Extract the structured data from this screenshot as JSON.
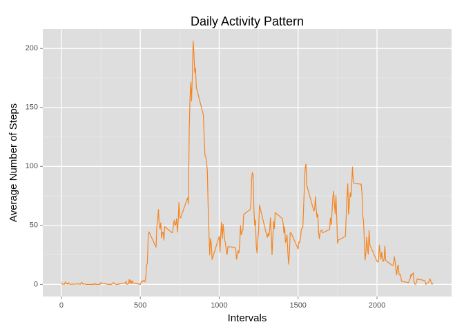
{
  "chart_data": {
    "type": "line",
    "title": "Daily Activity Pattern",
    "x_label": "Intervals",
    "y_label": "Average Number of Steps",
    "x": [
      0,
      5,
      10,
      15,
      20,
      25,
      30,
      35,
      40,
      45,
      50,
      55,
      100,
      105,
      110,
      115,
      120,
      125,
      130,
      135,
      140,
      145,
      150,
      155,
      200,
      205,
      210,
      215,
      220,
      225,
      230,
      235,
      240,
      245,
      250,
      255,
      300,
      305,
      310,
      315,
      320,
      325,
      330,
      335,
      340,
      345,
      350,
      355,
      400,
      405,
      410,
      415,
      420,
      425,
      430,
      435,
      440,
      445,
      450,
      455,
      500,
      505,
      510,
      515,
      520,
      525,
      530,
      535,
      540,
      545,
      550,
      555,
      600,
      605,
      610,
      615,
      620,
      625,
      630,
      635,
      640,
      645,
      650,
      655,
      700,
      705,
      710,
      715,
      720,
      725,
      730,
      735,
      740,
      745,
      750,
      755,
      800,
      805,
      810,
      815,
      820,
      825,
      830,
      835,
      840,
      845,
      850,
      855,
      900,
      905,
      910,
      915,
      920,
      925,
      930,
      935,
      940,
      945,
      950,
      955,
      1000,
      1005,
      1010,
      1015,
      1020,
      1025,
      1030,
      1035,
      1040,
      1045,
      1050,
      1055,
      1100,
      1105,
      1110,
      1115,
      1120,
      1125,
      1130,
      1135,
      1140,
      1145,
      1150,
      1155,
      1200,
      1205,
      1210,
      1215,
      1220,
      1225,
      1230,
      1235,
      1240,
      1245,
      1250,
      1255,
      1300,
      1305,
      1310,
      1315,
      1320,
      1325,
      1330,
      1335,
      1340,
      1345,
      1350,
      1355,
      1400,
      1405,
      1410,
      1415,
      1420,
      1425,
      1430,
      1435,
      1440,
      1445,
      1450,
      1455,
      1500,
      1505,
      1510,
      1515,
      1520,
      1525,
      1530,
      1535,
      1540,
      1545,
      1550,
      1555,
      1600,
      1605,
      1610,
      1615,
      1620,
      1625,
      1630,
      1635,
      1640,
      1645,
      1650,
      1655,
      1700,
      1705,
      1710,
      1715,
      1720,
      1725,
      1730,
      1735,
      1740,
      1745,
      1750,
      1755,
      1800,
      1805,
      1810,
      1815,
      1820,
      1825,
      1830,
      1835,
      1840,
      1845,
      1850,
      1855,
      1900,
      1905,
      1910,
      1915,
      1920,
      1925,
      1930,
      1935,
      1940,
      1945,
      1950,
      1955,
      2000,
      2005,
      2010,
      2015,
      2020,
      2025,
      2030,
      2035,
      2040,
      2045,
      2050,
      2055,
      2100,
      2105,
      2110,
      2115,
      2120,
      2125,
      2130,
      2135,
      2140,
      2145,
      2150,
      2155,
      2200,
      2205,
      2210,
      2215,
      2220,
      2225,
      2230,
      2235,
      2240,
      2245,
      2250,
      2255,
      2300,
      2305,
      2310,
      2315,
      2320,
      2325,
      2330,
      2335,
      2340,
      2345,
      2350,
      2355
    ],
    "series": [
      {
        "color": "#f5841f",
        "values": [
          1.7,
          0.3,
          0.1,
          0.2,
          0.1,
          2.1,
          0.5,
          0.9,
          0,
          1.5,
          0.3,
          0.1,
          0.3,
          0.7,
          0.2,
          0.3,
          0,
          1.1,
          1.8,
          0.2,
          0.2,
          0.4,
          0.3,
          0,
          0,
          0,
          1.1,
          0,
          0,
          0.1,
          0,
          0.2,
          0,
          0,
          1.5,
          0.9,
          0,
          0,
          0,
          0,
          0.2,
          0.6,
          1.6,
          0.6,
          0.5,
          0.1,
          0,
          0,
          1.2,
          0.9,
          2.6,
          0,
          0.3,
          0.4,
          4.1,
          0.7,
          3.5,
          0.8,
          3.1,
          1.1,
          0,
          1.6,
          3.0,
          2.2,
          3.3,
          3.0,
          2.1,
          6.1,
          16.0,
          18.3,
          39.5,
          44.5,
          31.5,
          49.3,
          53.8,
          63.5,
          50.0,
          47.1,
          52.2,
          39.3,
          44.0,
          44.2,
          37.4,
          49.0,
          43.8,
          44.4,
          50.5,
          54.5,
          49.9,
          50.9,
          55.7,
          44.3,
          52.3,
          69.5,
          57.8,
          56.2,
          73.4,
          68.2,
          129.4,
          157.5,
          171.2,
          155.4,
          177.3,
          206.2,
          195.9,
          179.6,
          183.4,
          167.0,
          143.5,
          124.0,
          109.1,
          108.1,
          103.7,
          96.0,
          66.2,
          45.2,
          24.8,
          38.8,
          35.0,
          21.1,
          40.6,
          27.0,
          42.4,
          52.7,
          38.9,
          50.8,
          44.3,
          37.4,
          34.7,
          28.3,
          25.1,
          31.9,
          31.4,
          29.7,
          21.3,
          25.5,
          28.4,
          26.5,
          33.4,
          50.0,
          42.0,
          44.6,
          46.0,
          59.2,
          63.9,
          87.7,
          94.8,
          92.8,
          63.4,
          50.2,
          54.5,
          32.4,
          26.5,
          37.7,
          45.1,
          67.3,
          42.3,
          39.9,
          43.3,
          41.0,
          46.2,
          56.4,
          42.8,
          25.1,
          40.0,
          53.5,
          47.3,
          60.8,
          55.8,
          52.0,
          43.6,
          48.7,
          35.5,
          37.5,
          41.8,
          27.5,
          17.1,
          26.1,
          43.6,
          43.8,
          30.0,
          36.1,
          35.5,
          38.8,
          46.0,
          47.8,
          48.1,
          65.3,
          82.9,
          98.7,
          102.1,
          84.0,
          62.1,
          64.1,
          74.5,
          63.2,
          56.9,
          59.8,
          43.9,
          38.6,
          44.7,
          45.5,
          46.2,
          43.7,
          46.6,
          56.3,
          50.7,
          61.2,
          73.4,
          79.0,
          68.9,
          59.7,
          75.1,
          56.5,
          34.8,
          37.5,
          40.7,
          58.0,
          74.7,
          85.3,
          59.3,
          67.8,
          77.7,
          74.2,
          85.3,
          99.5,
          86.6,
          85.6,
          84.9,
          77.8,
          58.0,
          53.4,
          36.3,
          20.7,
          27.4,
          40.0,
          30.2,
          25.5,
          45.7,
          33.5,
          19.6,
          19.0,
          19.3,
          33.3,
          26.8,
          21.2,
          27.3,
          21.3,
          19.5,
          21.3,
          32.3,
          20.2,
          15.9,
          17.2,
          23.5,
          19.2,
          12.5,
          8.0,
          14.7,
          16.3,
          8.7,
          7.8,
          8.1,
          2.6,
          1.5,
          3.7,
          4.8,
          8.5,
          7.1,
          8.7,
          9.8,
          2.2,
          0.3,
          0.1,
          1.6,
          4.6,
          3.3,
          2.8,
          0,
          0.8,
          1.0,
          1.6,
          2.6,
          4.7,
          3.3,
          0.6,
          0.2,
          1.1
        ]
      }
    ],
    "xlim": [
      -117.75,
      2472.75
    ],
    "xticks": [
      0,
      500,
      1000,
      1500,
      2000
    ],
    "ylim": [
      -10.3,
      216.5
    ],
    "yticks": [
      0,
      50,
      100,
      150,
      200
    ],
    "grid": true,
    "minor_grid": true
  }
}
